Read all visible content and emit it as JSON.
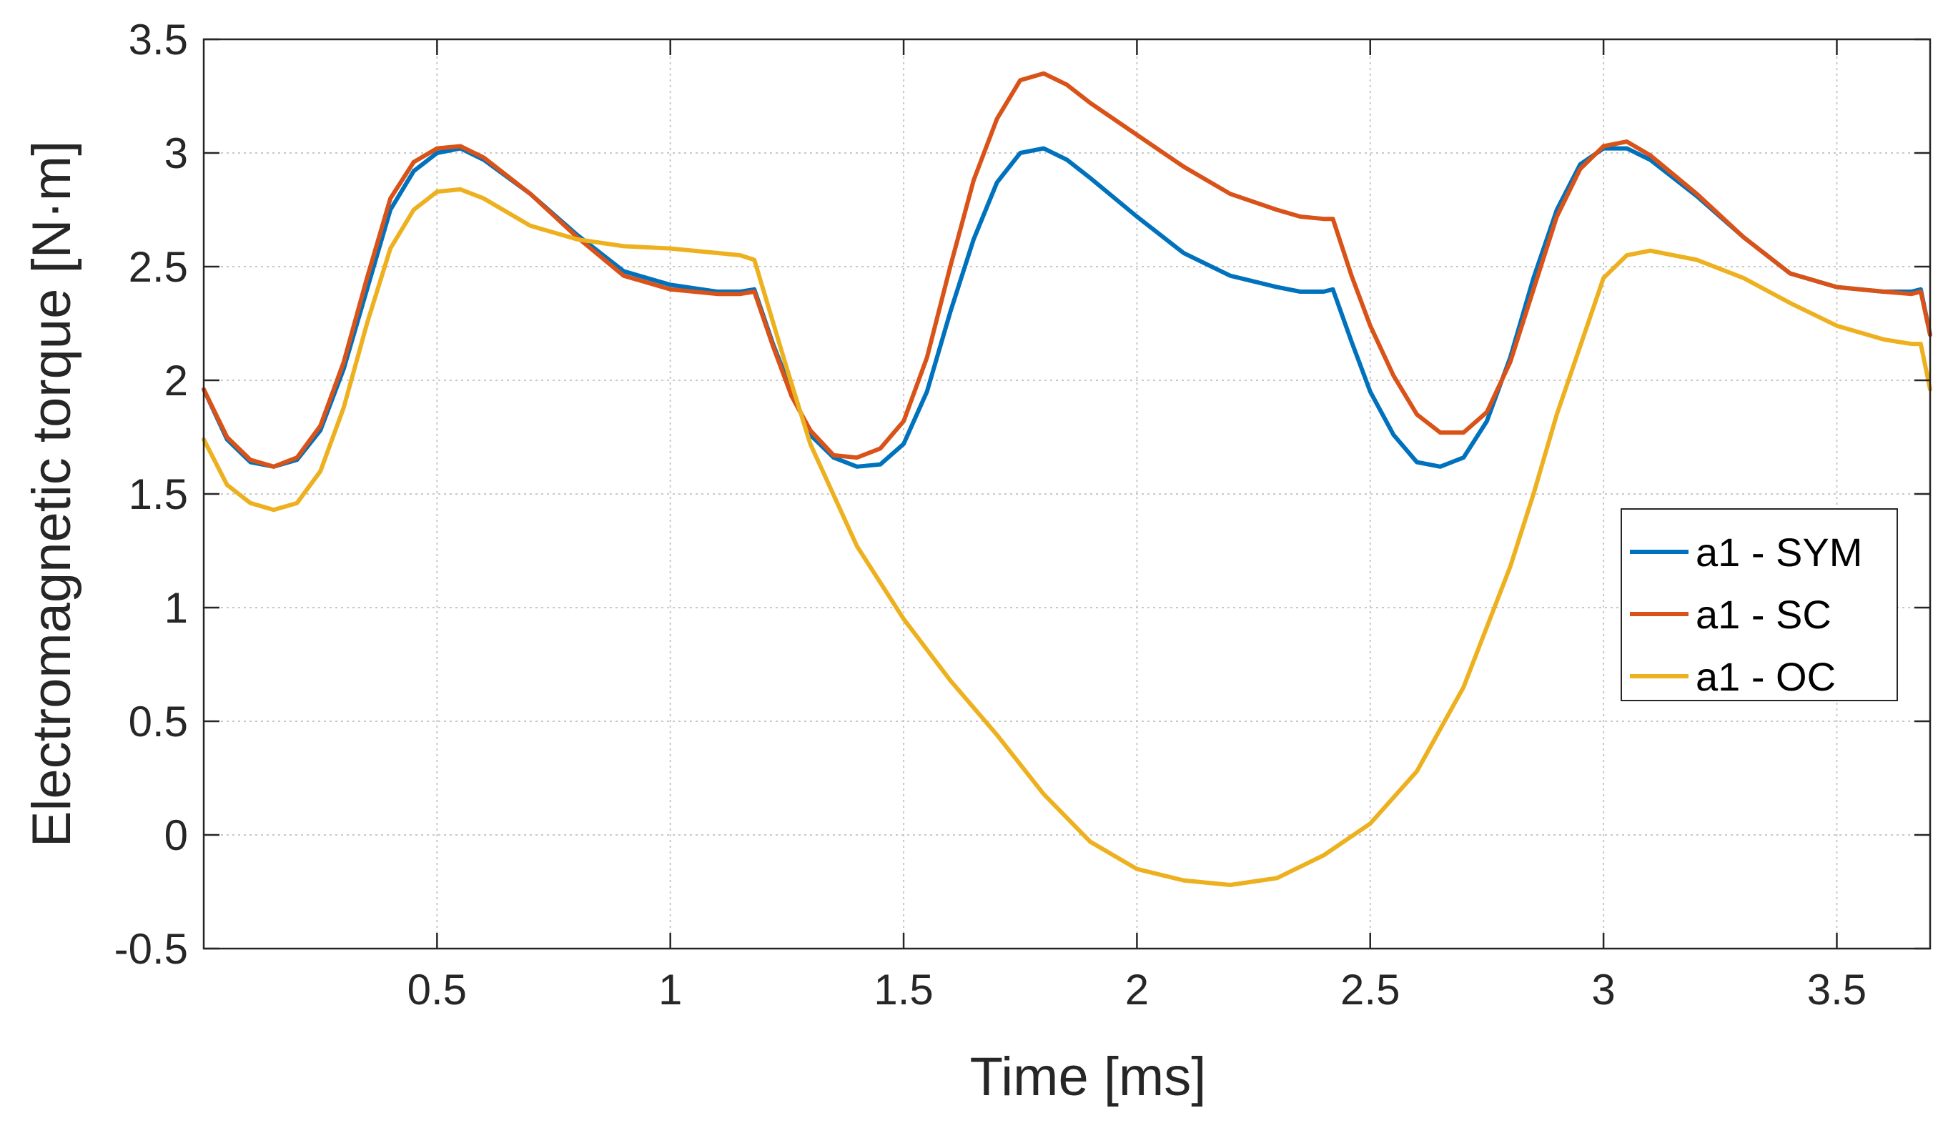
{
  "chart_data": {
    "type": "line",
    "title": "",
    "xlabel": "Time  [ms]",
    "ylabel": "Electromagnetic torque [N·m]",
    "xlim": [
      0.0,
      3.7
    ],
    "ylim": [
      -0.5,
      3.5
    ],
    "xticks": [
      0.5,
      1,
      1.5,
      2,
      2.5,
      3,
      3.5
    ],
    "xtick_labels": [
      "0.5",
      "1",
      "1.5",
      "2",
      "2.5",
      "3",
      "3.5"
    ],
    "yticks": [
      -0.5,
      0,
      0.5,
      1,
      1.5,
      2,
      2.5,
      3,
      3.5
    ],
    "ytick_labels": [
      "-0.5",
      "0",
      "0.5",
      "1",
      "1.5",
      "2",
      "2.5",
      "3",
      "3.5"
    ],
    "grid": true,
    "legend_position": "center-right",
    "series": [
      {
        "name": "a1 - SYM",
        "color": "#0072BD",
        "x": [
          0.0,
          0.05,
          0.1,
          0.15,
          0.2,
          0.25,
          0.3,
          0.35,
          0.4,
          0.45,
          0.5,
          0.55,
          0.6,
          0.7,
          0.8,
          0.9,
          1.0,
          1.1,
          1.15,
          1.18,
          1.22,
          1.26,
          1.3,
          1.35,
          1.4,
          1.45,
          1.5,
          1.55,
          1.6,
          1.65,
          1.7,
          1.75,
          1.8,
          1.85,
          1.9,
          2.0,
          2.1,
          2.2,
          2.3,
          2.35,
          2.4,
          2.42,
          2.46,
          2.5,
          2.55,
          2.6,
          2.65,
          2.7,
          2.75,
          2.8,
          2.85,
          2.9,
          2.95,
          3.0,
          3.05,
          3.1,
          3.2,
          3.3,
          3.4,
          3.5,
          3.6,
          3.66,
          3.68,
          3.7
        ],
        "y": [
          1.96,
          1.74,
          1.64,
          1.62,
          1.65,
          1.78,
          2.05,
          2.4,
          2.75,
          2.92,
          3.0,
          3.02,
          2.97,
          2.82,
          2.64,
          2.48,
          2.42,
          2.39,
          2.39,
          2.4,
          2.16,
          1.95,
          1.76,
          1.66,
          1.62,
          1.63,
          1.72,
          1.95,
          2.3,
          2.62,
          2.87,
          3.0,
          3.02,
          2.97,
          2.89,
          2.72,
          2.56,
          2.46,
          2.41,
          2.39,
          2.39,
          2.4,
          2.17,
          1.95,
          1.76,
          1.64,
          1.62,
          1.66,
          1.82,
          2.1,
          2.45,
          2.75,
          2.95,
          3.02,
          3.02,
          2.97,
          2.81,
          2.63,
          2.47,
          2.41,
          2.39,
          2.39,
          2.4,
          2.2
        ]
      },
      {
        "name": "a1 - SC",
        "color": "#D95319",
        "x": [
          0.0,
          0.05,
          0.1,
          0.15,
          0.2,
          0.25,
          0.3,
          0.35,
          0.4,
          0.45,
          0.5,
          0.55,
          0.6,
          0.7,
          0.8,
          0.9,
          1.0,
          1.1,
          1.15,
          1.18,
          1.22,
          1.26,
          1.3,
          1.35,
          1.4,
          1.45,
          1.5,
          1.55,
          1.6,
          1.65,
          1.7,
          1.75,
          1.8,
          1.85,
          1.9,
          2.0,
          2.1,
          2.2,
          2.3,
          2.35,
          2.4,
          2.42,
          2.46,
          2.5,
          2.55,
          2.6,
          2.65,
          2.7,
          2.75,
          2.8,
          2.85,
          2.9,
          2.95,
          3.0,
          3.05,
          3.1,
          3.2,
          3.3,
          3.4,
          3.5,
          3.6,
          3.66,
          3.68,
          3.7
        ],
        "y": [
          1.96,
          1.75,
          1.65,
          1.62,
          1.66,
          1.8,
          2.08,
          2.45,
          2.8,
          2.96,
          3.02,
          3.03,
          2.98,
          2.82,
          2.63,
          2.46,
          2.4,
          2.38,
          2.38,
          2.39,
          2.15,
          1.93,
          1.78,
          1.67,
          1.66,
          1.7,
          1.82,
          2.1,
          2.5,
          2.88,
          3.15,
          3.32,
          3.35,
          3.3,
          3.22,
          3.08,
          2.94,
          2.82,
          2.75,
          2.72,
          2.71,
          2.71,
          2.46,
          2.24,
          2.02,
          1.85,
          1.77,
          1.77,
          1.86,
          2.08,
          2.4,
          2.72,
          2.93,
          3.03,
          3.05,
          2.99,
          2.82,
          2.63,
          2.47,
          2.41,
          2.39,
          2.38,
          2.39,
          2.2
        ]
      },
      {
        "name": "a1 - OC",
        "color": "#EDB120",
        "x": [
          0.0,
          0.05,
          0.1,
          0.15,
          0.2,
          0.25,
          0.3,
          0.35,
          0.4,
          0.45,
          0.5,
          0.55,
          0.6,
          0.7,
          0.8,
          0.9,
          1.0,
          1.1,
          1.15,
          1.18,
          1.25,
          1.3,
          1.4,
          1.5,
          1.6,
          1.7,
          1.8,
          1.9,
          2.0,
          2.1,
          2.2,
          2.3,
          2.4,
          2.5,
          2.6,
          2.7,
          2.8,
          2.85,
          2.9,
          2.95,
          3.0,
          3.05,
          3.1,
          3.2,
          3.3,
          3.4,
          3.5,
          3.6,
          3.66,
          3.68,
          3.7
        ],
        "y": [
          1.74,
          1.54,
          1.46,
          1.43,
          1.46,
          1.6,
          1.88,
          2.25,
          2.58,
          2.75,
          2.83,
          2.84,
          2.8,
          2.68,
          2.62,
          2.59,
          2.58,
          2.56,
          2.55,
          2.53,
          2.05,
          1.72,
          1.27,
          0.95,
          0.68,
          0.44,
          0.18,
          -0.03,
          -0.15,
          -0.2,
          -0.22,
          -0.19,
          -0.09,
          0.05,
          0.28,
          0.65,
          1.18,
          1.5,
          1.85,
          2.15,
          2.45,
          2.55,
          2.57,
          2.53,
          2.45,
          2.34,
          2.24,
          2.18,
          2.16,
          2.16,
          1.96
        ]
      }
    ]
  }
}
